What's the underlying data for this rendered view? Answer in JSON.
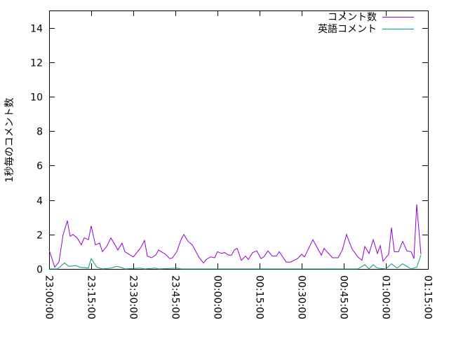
{
  "chart_data": {
    "type": "line",
    "title": "",
    "xlabel": "",
    "ylabel": "1秒毎のコメント数",
    "xlim": [
      "23:00:00",
      "01:15:00"
    ],
    "ylim": [
      0,
      15
    ],
    "x_ticks": [
      "23:00:00",
      "23:15:00",
      "23:30:00",
      "23:45:00",
      "00:00:00",
      "00:15:00",
      "00:30:00",
      "00:45:00",
      "01:00:00",
      "01:15:00"
    ],
    "y_ticks": [
      "0",
      "2",
      "4",
      "6",
      "8",
      "10",
      "12",
      "14"
    ],
    "grid": false,
    "legend_position": "top-right",
    "series": [
      {
        "name": "コメント数",
        "color": "#9400d3",
        "points": [
          [
            "23:00:00",
            1.1
          ],
          [
            "23:02:00",
            0.1
          ],
          [
            "23:03:30",
            0.4
          ],
          [
            "23:05:00",
            2.0
          ],
          [
            "23:06:30",
            2.8
          ],
          [
            "23:07:30",
            1.9
          ],
          [
            "23:08:30",
            2.0
          ],
          [
            "23:10:00",
            1.8
          ],
          [
            "23:11:30",
            1.4
          ],
          [
            "23:12:30",
            1.8
          ],
          [
            "23:14:00",
            1.7
          ],
          [
            "23:15:00",
            2.5
          ],
          [
            "23:16:30",
            1.4
          ],
          [
            "23:18:00",
            1.5
          ],
          [
            "23:19:00",
            1.0
          ],
          [
            "23:20:30",
            1.3
          ],
          [
            "23:22:00",
            1.8
          ],
          [
            "23:23:30",
            1.4
          ],
          [
            "23:24:30",
            1.1
          ],
          [
            "23:26:00",
            1.5
          ],
          [
            "23:27:00",
            1.0
          ],
          [
            "23:28:00",
            0.9
          ],
          [
            "23:30:00",
            0.7
          ],
          [
            "23:31:00",
            0.9
          ],
          [
            "23:32:30",
            1.2
          ],
          [
            "23:34:00",
            1.65
          ],
          [
            "23:35:00",
            0.75
          ],
          [
            "23:36:30",
            0.65
          ],
          [
            "23:38:00",
            0.8
          ],
          [
            "23:39:00",
            1.1
          ],
          [
            "23:40:00",
            1.0
          ],
          [
            "23:41:30",
            0.85
          ],
          [
            "23:43:00",
            0.6
          ],
          [
            "23:44:00",
            0.65
          ],
          [
            "23:45:30",
            1.0
          ],
          [
            "23:47:00",
            1.7
          ],
          [
            "23:48:00",
            2.0
          ],
          [
            "23:49:30",
            1.6
          ],
          [
            "23:51:00",
            1.4
          ],
          [
            "23:52:00",
            1.1
          ],
          [
            "23:53:30",
            0.65
          ],
          [
            "23:55:00",
            0.35
          ],
          [
            "23:56:00",
            0.55
          ],
          [
            "23:57:30",
            0.7
          ],
          [
            "23:59:00",
            0.65
          ],
          [
            "00:00:00",
            1.0
          ],
          [
            "00:01:30",
            0.9
          ],
          [
            "00:02:30",
            0.95
          ],
          [
            "00:04:00",
            0.8
          ],
          [
            "00:05:00",
            0.8
          ],
          [
            "00:06:00",
            1.1
          ],
          [
            "00:07:00",
            1.2
          ],
          [
            "00:08:30",
            0.5
          ],
          [
            "00:10:00",
            0.75
          ],
          [
            "00:11:00",
            0.55
          ],
          [
            "00:12:30",
            0.95
          ],
          [
            "00:14:00",
            1.05
          ],
          [
            "00:15:30",
            0.6
          ],
          [
            "00:16:30",
            0.7
          ],
          [
            "00:18:00",
            1.05
          ],
          [
            "00:19:30",
            0.75
          ],
          [
            "00:21:00",
            0.75
          ],
          [
            "00:22:00",
            1.0
          ],
          [
            "00:24:30",
            0.4
          ],
          [
            "00:26:00",
            0.4
          ],
          [
            "00:28:30",
            0.6
          ],
          [
            "00:30:00",
            0.85
          ],
          [
            "00:31:00",
            0.7
          ],
          [
            "00:34:00",
            1.7
          ],
          [
            "00:35:00",
            1.4
          ],
          [
            "00:37:00",
            0.8
          ],
          [
            "00:38:00",
            1.2
          ],
          [
            "00:39:00",
            1.0
          ],
          [
            "00:41:00",
            0.65
          ],
          [
            "00:43:00",
            0.65
          ],
          [
            "00:44:30",
            1.1
          ],
          [
            "00:46:00",
            2.0
          ],
          [
            "00:47:00",
            1.55
          ],
          [
            "00:48:00",
            1.15
          ],
          [
            "00:50:00",
            0.7
          ],
          [
            "00:51:30",
            0.5
          ],
          [
            "00:52:30",
            1.3
          ],
          [
            "00:54:00",
            0.9
          ],
          [
            "00:55:30",
            1.7
          ],
          [
            "00:57:00",
            0.9
          ],
          [
            "00:58:00",
            1.35
          ],
          [
            "00:59:00",
            0.45
          ],
          [
            "01:01:00",
            0.85
          ],
          [
            "01:02:00",
            2.4
          ],
          [
            "01:03:00",
            1.0
          ],
          [
            "01:04:30",
            1.0
          ],
          [
            "01:06:00",
            1.6
          ],
          [
            "01:07:30",
            1.05
          ],
          [
            "01:09:00",
            1.0
          ],
          [
            "01:10:00",
            0.6
          ],
          [
            "01:11:00",
            3.75
          ],
          [
            "01:12:30",
            0.85
          ]
        ]
      },
      {
        "name": "英語コメント",
        "color": "#009e73",
        "points": [
          [
            "23:00:00",
            0
          ],
          [
            "23:03:00",
            0
          ],
          [
            "23:05:30",
            0.35
          ],
          [
            "23:07:00",
            0.15
          ],
          [
            "23:09:30",
            0.2
          ],
          [
            "23:11:00",
            0.1
          ],
          [
            "23:14:00",
            0.05
          ],
          [
            "23:15:00",
            0.6
          ],
          [
            "23:17:00",
            0.1
          ],
          [
            "23:19:00",
            0
          ],
          [
            "23:22:00",
            0.05
          ],
          [
            "23:24:00",
            0.15
          ],
          [
            "23:25:30",
            0.1
          ],
          [
            "23:27:00",
            0
          ],
          [
            "23:32:30",
            0.05
          ],
          [
            "23:34:00",
            0
          ],
          [
            "23:38:00",
            0.05
          ],
          [
            "23:39:00",
            0
          ],
          [
            "23:45:30",
            0.05
          ],
          [
            "23:47:00",
            0
          ],
          [
            "00:00:00",
            0
          ],
          [
            "00:50:00",
            0
          ],
          [
            "00:52:30",
            0.25
          ],
          [
            "00:54:00",
            0
          ],
          [
            "00:55:30",
            0.25
          ],
          [
            "00:57:00",
            0.05
          ],
          [
            "01:00:00",
            0
          ],
          [
            "01:02:00",
            0.3
          ],
          [
            "01:04:00",
            0.05
          ],
          [
            "01:06:00",
            0.3
          ],
          [
            "01:09:00",
            0
          ],
          [
            "01:11:00",
            0.1
          ],
          [
            "01:12:30",
            0.8
          ]
        ]
      }
    ]
  }
}
